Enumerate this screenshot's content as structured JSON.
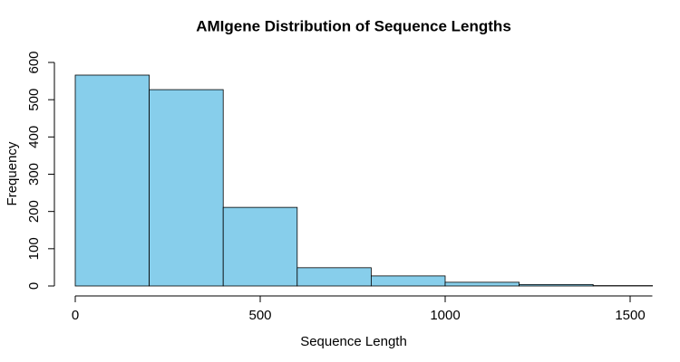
{
  "chart_data": {
    "type": "histogram",
    "title": "AMIgene Distribution of Sequence Lengths",
    "x_label": "Sequence Length",
    "y_label": "Frequency",
    "bins": [
      0,
      200,
      400,
      600,
      800,
      1000,
      1200,
      1400,
      1600
    ],
    "values": [
      566,
      527,
      211,
      49,
      27,
      10,
      4,
      1
    ],
    "color": "#87ceeb",
    "xlim": [
      0,
      1560
    ],
    "xticks": [
      0,
      500,
      1000,
      1500
    ],
    "ylim": [
      0,
      600
    ],
    "yticks": [
      0,
      100,
      200,
      300,
      400,
      500,
      600
    ]
  }
}
